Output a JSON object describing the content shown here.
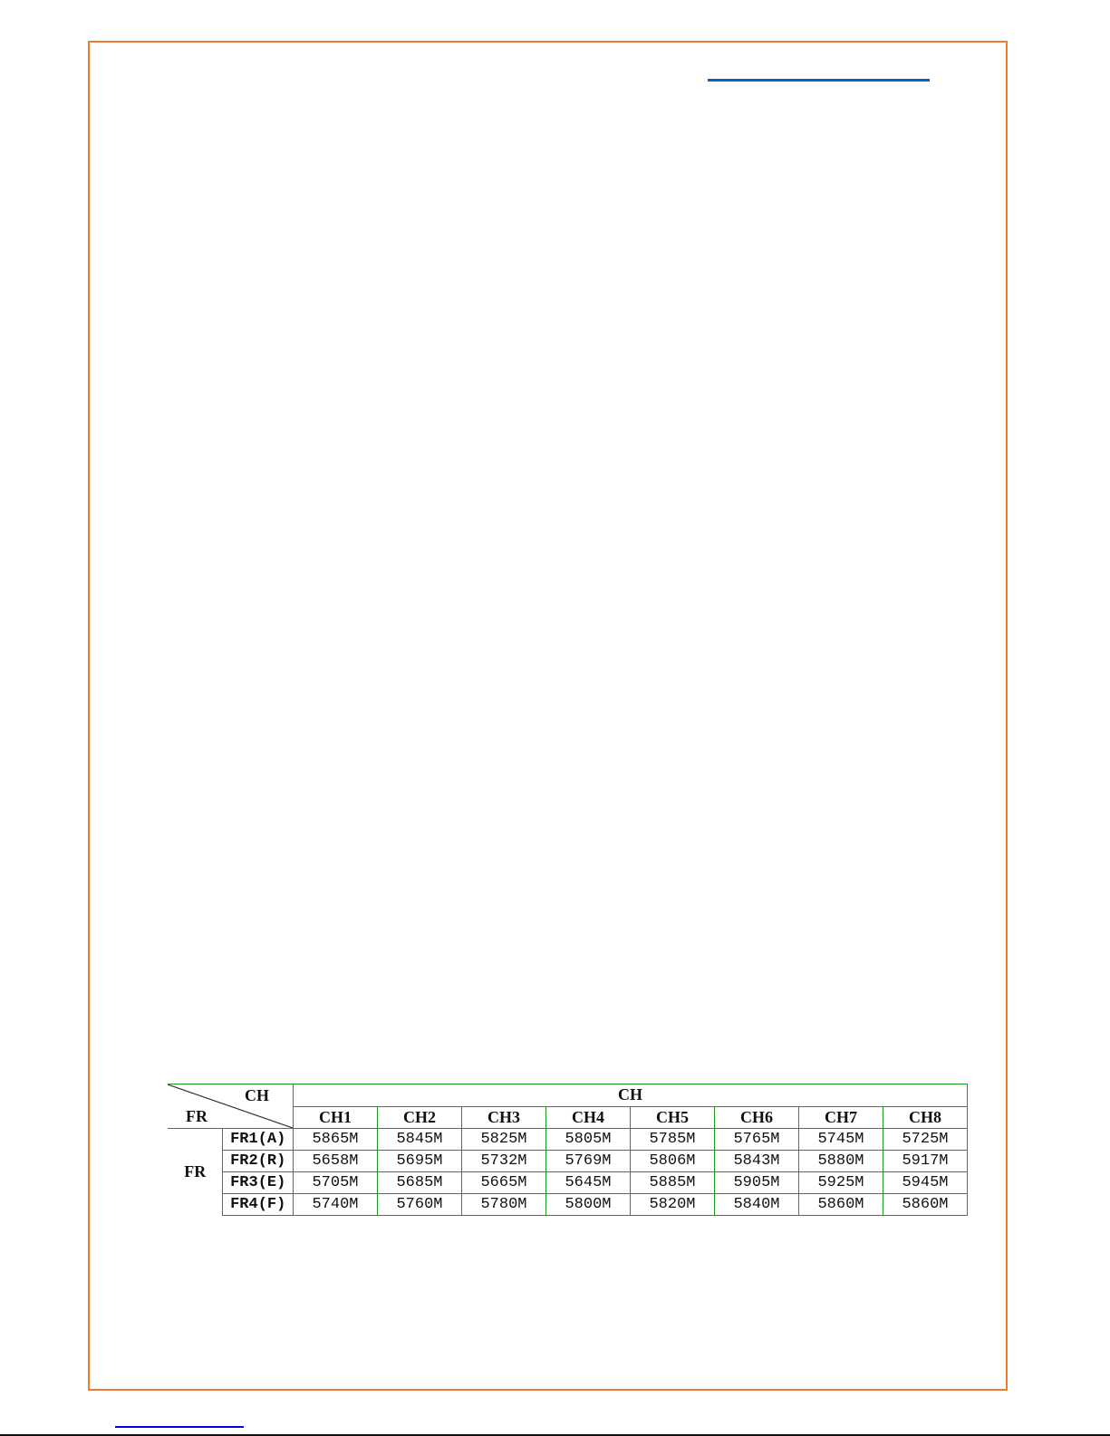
{
  "colors": {
    "frame": "#ed7d31",
    "table_border": "#1a9a1a",
    "link": "#0563c1"
  },
  "table": {
    "corner_col_label": "CH",
    "corner_row_label": "FR",
    "group_header": "CH",
    "row_group_label": "FR",
    "columns": [
      "CH1",
      "CH2",
      "CH3",
      "CH4",
      "CH5",
      "CH6",
      "CH7",
      "CH8"
    ],
    "rows": [
      {
        "label": "FR1(A)",
        "values": [
          "5865M",
          "5845M",
          "5825M",
          "5805M",
          "5785M",
          "5765M",
          "5745M",
          "5725M"
        ]
      },
      {
        "label": "FR2(R)",
        "values": [
          "5658M",
          "5695M",
          "5732M",
          "5769M",
          "5806M",
          "5843M",
          "5880M",
          "5917M"
        ]
      },
      {
        "label": "FR3(E)",
        "values": [
          "5705M",
          "5685M",
          "5665M",
          "5645M",
          "5885M",
          "5905M",
          "5925M",
          "5945M"
        ]
      },
      {
        "label": "FR4(F)",
        "values": [
          "5740M",
          "5760M",
          "5780M",
          "5800M",
          "5820M",
          "5840M",
          "5860M",
          "5860M"
        ]
      }
    ]
  }
}
